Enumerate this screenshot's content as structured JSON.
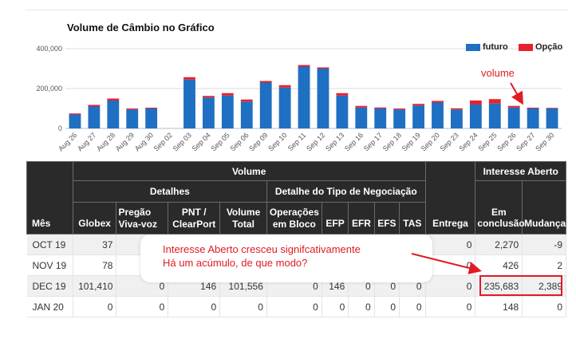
{
  "chart_data": {
    "type": "bar",
    "title": "Volume de Câmbio no Gráfico",
    "categories": [
      "Aug 26",
      "Aug 27",
      "Aug 28",
      "Aug 29",
      "Aug 30",
      "Sep 02",
      "Sep 03",
      "Sep 04",
      "Sep 05",
      "Sep 06",
      "Sep 09",
      "Sep 10",
      "Sep 11",
      "Sep 12",
      "Sep 13",
      "Sep 16",
      "Sep 17",
      "Sep 18",
      "Sep 19",
      "Sep 20",
      "Sep 23",
      "Sep 24",
      "Sep 25",
      "Sep 26",
      "Sep 27",
      "Sep 30"
    ],
    "series": [
      {
        "name": "futuro",
        "values": [
          70000,
          110000,
          140000,
          95000,
          100000,
          0,
          245000,
          155000,
          165000,
          135000,
          230000,
          205000,
          310000,
          300000,
          165000,
          105000,
          100000,
          95000,
          115000,
          130000,
          95000,
          120000,
          125000,
          105000,
          100000,
          100000
        ],
        "color": "#1f6fc2"
      },
      {
        "name": "Opção",
        "values": [
          5000,
          8000,
          10000,
          5000,
          4000,
          0,
          12000,
          8000,
          12000,
          10000,
          8000,
          12000,
          8000,
          6000,
          12000,
          8000,
          5000,
          5000,
          8000,
          8000,
          6000,
          20000,
          22000,
          8000,
          4000,
          3000
        ],
        "color": "#e8212e"
      }
    ],
    "ylim": [
      0,
      400000
    ],
    "yticks": [
      "0",
      "200,000",
      "400,000"
    ],
    "grid": true,
    "legend": "top-right"
  },
  "table": {
    "group_volume": "Volume",
    "group_details": "Detalhes",
    "group_trade_type": "Detalhe do Tipo de Negociação",
    "group_open_interest": "Interesse Aberto",
    "col_month": "Mês",
    "col_globex": "Globex",
    "col_pit_1": "Pregão",
    "col_pit_2": "Viva-voz",
    "col_pnt_1": "PNT /",
    "col_pnt_2": "ClearPort",
    "col_total_1": "Volume",
    "col_total_2": "Total",
    "col_block_1": "Operações",
    "col_block_2": "em Bloco",
    "col_efp": "EFP",
    "col_efr": "EFR",
    "col_efs": "EFS",
    "col_tas": "TAS",
    "col_delivery": "Entrega",
    "col_oi_1": "Em",
    "col_oi_2": "conclusão",
    "col_change": "Mudança",
    "rows": [
      {
        "month": "OCT 19",
        "globex": "37",
        "pit": "",
        "pnt": "",
        "total": "",
        "block": "",
        "efp": "",
        "efr": "",
        "efs": "",
        "tas": "",
        "delivery": "0",
        "oi": "2,270",
        "change": "-9"
      },
      {
        "month": "NOV 19",
        "globex": "78",
        "pit": "",
        "pnt": "",
        "total": "",
        "block": "",
        "efp": "",
        "efr": "",
        "efs": "",
        "tas": "",
        "delivery": "0",
        "oi": "426",
        "change": "2"
      },
      {
        "month": "DEC 19",
        "globex": "101,410",
        "pit": "0",
        "pnt": "146",
        "total": "101,556",
        "block": "0",
        "efp": "146",
        "efr": "0",
        "efs": "0",
        "tas": "0",
        "delivery": "0",
        "oi": "235,683",
        "change": "2,389"
      },
      {
        "month": "JAN 20",
        "globex": "0",
        "pit": "0",
        "pnt": "0",
        "total": "0",
        "block": "0",
        "efp": "0",
        "efr": "0",
        "efs": "0",
        "tas": "0",
        "delivery": "0",
        "oi": "148",
        "change": "0"
      }
    ]
  },
  "annotations": {
    "volume_label": "volume",
    "line1": "Interesse Aberto cresceu signifcativamente",
    "line2": "Há um acúmulo,  de que modo?",
    "color": "#e01b24"
  }
}
